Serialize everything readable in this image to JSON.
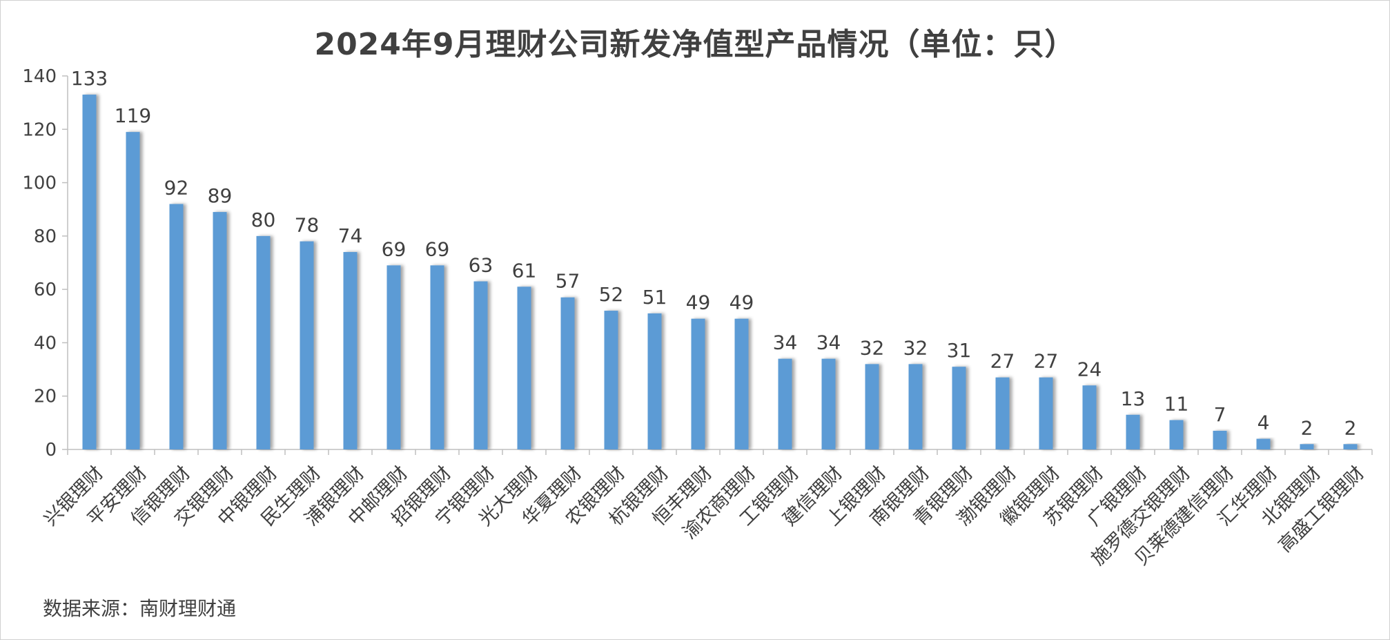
{
  "chart_data": {
    "type": "bar",
    "title": "2024年9月理财公司新发净值型产品情况（单位：只）",
    "xlabel": "",
    "ylabel": "",
    "ylim": [
      0,
      140
    ],
    "yticks": [
      0,
      20,
      40,
      60,
      80,
      100,
      120,
      140
    ],
    "grid": false,
    "legend": "none",
    "bar_color": "#5b9bd5",
    "categories": [
      "兴银理财",
      "平安理财",
      "信银理财",
      "交银理财",
      "中银理财",
      "民生理财",
      "浦银理财",
      "中邮理财",
      "招银理财",
      "宁银理财",
      "光大理财",
      "华夏理财",
      "农银理财",
      "杭银理财",
      "恒丰理财",
      "渝农商理财",
      "工银理财",
      "建信理财",
      "上银理财",
      "南银理财",
      "青银理财",
      "渤银理财",
      "徽银理财",
      "苏银理财",
      "广银理财",
      "施罗德交银理财",
      "贝莱德建信理财",
      "汇华理财",
      "北银理财",
      "高盛工银理财"
    ],
    "values": [
      133,
      119,
      92,
      89,
      80,
      78,
      74,
      69,
      69,
      63,
      61,
      57,
      52,
      51,
      49,
      49,
      34,
      34,
      32,
      32,
      31,
      27,
      27,
      24,
      13,
      11,
      7,
      4,
      2,
      2
    ]
  },
  "source_label": "数据来源：南财理财通"
}
